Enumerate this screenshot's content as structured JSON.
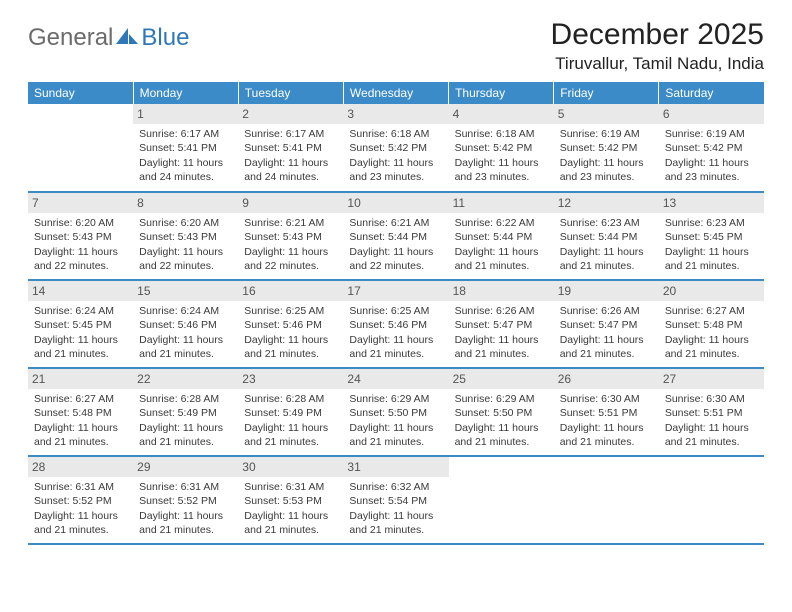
{
  "logo": {
    "part1": "General",
    "part2": "Blue"
  },
  "title": "December 2025",
  "location": "Tiruvallur, Tamil Nadu, India",
  "colors": {
    "header_bg": "#3b8bc9",
    "header_text": "#ffffff",
    "daynum_bg": "#e9e9e9",
    "border": "#3b8bc9",
    "logo_gray": "#6b6b6b",
    "logo_blue": "#2f78b7"
  },
  "day_names": [
    "Sunday",
    "Monday",
    "Tuesday",
    "Wednesday",
    "Thursday",
    "Friday",
    "Saturday"
  ],
  "weeks": [
    [
      {
        "n": "",
        "empty": true
      },
      {
        "n": "1",
        "sr": "Sunrise: 6:17 AM",
        "ss": "Sunset: 5:41 PM",
        "d1": "Daylight: 11 hours",
        "d2": "and 24 minutes."
      },
      {
        "n": "2",
        "sr": "Sunrise: 6:17 AM",
        "ss": "Sunset: 5:41 PM",
        "d1": "Daylight: 11 hours",
        "d2": "and 24 minutes."
      },
      {
        "n": "3",
        "sr": "Sunrise: 6:18 AM",
        "ss": "Sunset: 5:42 PM",
        "d1": "Daylight: 11 hours",
        "d2": "and 23 minutes."
      },
      {
        "n": "4",
        "sr": "Sunrise: 6:18 AM",
        "ss": "Sunset: 5:42 PM",
        "d1": "Daylight: 11 hours",
        "d2": "and 23 minutes."
      },
      {
        "n": "5",
        "sr": "Sunrise: 6:19 AM",
        "ss": "Sunset: 5:42 PM",
        "d1": "Daylight: 11 hours",
        "d2": "and 23 minutes."
      },
      {
        "n": "6",
        "sr": "Sunrise: 6:19 AM",
        "ss": "Sunset: 5:42 PM",
        "d1": "Daylight: 11 hours",
        "d2": "and 23 minutes."
      }
    ],
    [
      {
        "n": "7",
        "sr": "Sunrise: 6:20 AM",
        "ss": "Sunset: 5:43 PM",
        "d1": "Daylight: 11 hours",
        "d2": "and 22 minutes."
      },
      {
        "n": "8",
        "sr": "Sunrise: 6:20 AM",
        "ss": "Sunset: 5:43 PM",
        "d1": "Daylight: 11 hours",
        "d2": "and 22 minutes."
      },
      {
        "n": "9",
        "sr": "Sunrise: 6:21 AM",
        "ss": "Sunset: 5:43 PM",
        "d1": "Daylight: 11 hours",
        "d2": "and 22 minutes."
      },
      {
        "n": "10",
        "sr": "Sunrise: 6:21 AM",
        "ss": "Sunset: 5:44 PM",
        "d1": "Daylight: 11 hours",
        "d2": "and 22 minutes."
      },
      {
        "n": "11",
        "sr": "Sunrise: 6:22 AM",
        "ss": "Sunset: 5:44 PM",
        "d1": "Daylight: 11 hours",
        "d2": "and 21 minutes."
      },
      {
        "n": "12",
        "sr": "Sunrise: 6:23 AM",
        "ss": "Sunset: 5:44 PM",
        "d1": "Daylight: 11 hours",
        "d2": "and 21 minutes."
      },
      {
        "n": "13",
        "sr": "Sunrise: 6:23 AM",
        "ss": "Sunset: 5:45 PM",
        "d1": "Daylight: 11 hours",
        "d2": "and 21 minutes."
      }
    ],
    [
      {
        "n": "14",
        "sr": "Sunrise: 6:24 AM",
        "ss": "Sunset: 5:45 PM",
        "d1": "Daylight: 11 hours",
        "d2": "and 21 minutes."
      },
      {
        "n": "15",
        "sr": "Sunrise: 6:24 AM",
        "ss": "Sunset: 5:46 PM",
        "d1": "Daylight: 11 hours",
        "d2": "and 21 minutes."
      },
      {
        "n": "16",
        "sr": "Sunrise: 6:25 AM",
        "ss": "Sunset: 5:46 PM",
        "d1": "Daylight: 11 hours",
        "d2": "and 21 minutes."
      },
      {
        "n": "17",
        "sr": "Sunrise: 6:25 AM",
        "ss": "Sunset: 5:46 PM",
        "d1": "Daylight: 11 hours",
        "d2": "and 21 minutes."
      },
      {
        "n": "18",
        "sr": "Sunrise: 6:26 AM",
        "ss": "Sunset: 5:47 PM",
        "d1": "Daylight: 11 hours",
        "d2": "and 21 minutes."
      },
      {
        "n": "19",
        "sr": "Sunrise: 6:26 AM",
        "ss": "Sunset: 5:47 PM",
        "d1": "Daylight: 11 hours",
        "d2": "and 21 minutes."
      },
      {
        "n": "20",
        "sr": "Sunrise: 6:27 AM",
        "ss": "Sunset: 5:48 PM",
        "d1": "Daylight: 11 hours",
        "d2": "and 21 minutes."
      }
    ],
    [
      {
        "n": "21",
        "sr": "Sunrise: 6:27 AM",
        "ss": "Sunset: 5:48 PM",
        "d1": "Daylight: 11 hours",
        "d2": "and 21 minutes."
      },
      {
        "n": "22",
        "sr": "Sunrise: 6:28 AM",
        "ss": "Sunset: 5:49 PM",
        "d1": "Daylight: 11 hours",
        "d2": "and 21 minutes."
      },
      {
        "n": "23",
        "sr": "Sunrise: 6:28 AM",
        "ss": "Sunset: 5:49 PM",
        "d1": "Daylight: 11 hours",
        "d2": "and 21 minutes."
      },
      {
        "n": "24",
        "sr": "Sunrise: 6:29 AM",
        "ss": "Sunset: 5:50 PM",
        "d1": "Daylight: 11 hours",
        "d2": "and 21 minutes."
      },
      {
        "n": "25",
        "sr": "Sunrise: 6:29 AM",
        "ss": "Sunset: 5:50 PM",
        "d1": "Daylight: 11 hours",
        "d2": "and 21 minutes."
      },
      {
        "n": "26",
        "sr": "Sunrise: 6:30 AM",
        "ss": "Sunset: 5:51 PM",
        "d1": "Daylight: 11 hours",
        "d2": "and 21 minutes."
      },
      {
        "n": "27",
        "sr": "Sunrise: 6:30 AM",
        "ss": "Sunset: 5:51 PM",
        "d1": "Daylight: 11 hours",
        "d2": "and 21 minutes."
      }
    ],
    [
      {
        "n": "28",
        "sr": "Sunrise: 6:31 AM",
        "ss": "Sunset: 5:52 PM",
        "d1": "Daylight: 11 hours",
        "d2": "and 21 minutes."
      },
      {
        "n": "29",
        "sr": "Sunrise: 6:31 AM",
        "ss": "Sunset: 5:52 PM",
        "d1": "Daylight: 11 hours",
        "d2": "and 21 minutes."
      },
      {
        "n": "30",
        "sr": "Sunrise: 6:31 AM",
        "ss": "Sunset: 5:53 PM",
        "d1": "Daylight: 11 hours",
        "d2": "and 21 minutes."
      },
      {
        "n": "31",
        "sr": "Sunrise: 6:32 AM",
        "ss": "Sunset: 5:54 PM",
        "d1": "Daylight: 11 hours",
        "d2": "and 21 minutes."
      },
      {
        "n": "",
        "empty": true
      },
      {
        "n": "",
        "empty": true
      },
      {
        "n": "",
        "empty": true
      }
    ]
  ]
}
